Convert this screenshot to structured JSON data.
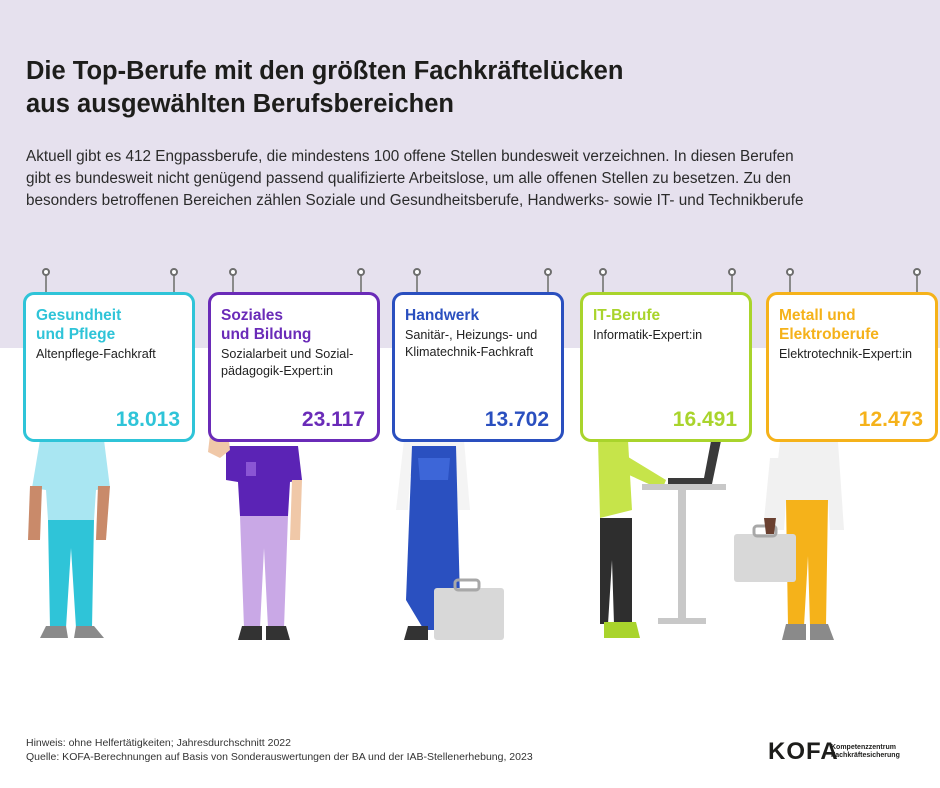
{
  "title_line1": "Die Top-Berufe mit den größten Fachkräftelücken",
  "title_line2": "aus ausgewählten Berufsbereichen",
  "intro": "Aktuell gibt es 412 Engpassberufe, die mindestens 100 offene Stellen bundesweit verzeichnen. In diesen Berufen gibt es bundesweit nicht genügend passend qualifizierte Arbeitslose, um alle offenen Stellen zu besetzen. Zu den besonders betroffenen Bereichen zählen Soziale und Gesundheitsberufe, Handwerks- sowie IT- und Technikberufe",
  "cards": [
    {
      "head1": "Gesundheit",
      "head2": "und Pflege",
      "job1": "Altenpflege-Fachkraft",
      "job2": "",
      "value": "18.013",
      "color": "#2fc4d8"
    },
    {
      "head1": "Soziales",
      "head2": "und Bildung",
      "job1": "Sozialarbeit und Sozial-",
      "job2": "pädagogik-Expert:in",
      "value": "23.117",
      "color": "#6a2bb8"
    },
    {
      "head1": "Handwerk",
      "head2": "",
      "job1": "Sanitär-, Heizungs- und",
      "job2": "Klimatechnik-Fachkraft",
      "value": "13.702",
      "color": "#2a4fbf"
    },
    {
      "head1": "IT-Berufe",
      "head2": "",
      "job1": "Informatik-Expert:in",
      "job2": "",
      "value": "16.491",
      "color": "#a9d42c"
    },
    {
      "head1": "Metall und",
      "head2": "Elektroberufe",
      "job1": "Elektrotechnik-Expert:in",
      "job2": "",
      "value": "12.473",
      "color": "#f5b21a"
    }
  ],
  "footnote1": "Hinweis: ohne Helfertätigkeiten; Jahresdurchschnitt 2022",
  "footnote2": "Quelle: KOFA-Berechnungen auf Basis von Sonderauswertungen der BA und der IAB-Stellenerhebung, 2023",
  "logo_text": "KOFA",
  "logo_sub1": "Kompetenzzentrum",
  "logo_sub2": "Fachkräftesicherung"
}
